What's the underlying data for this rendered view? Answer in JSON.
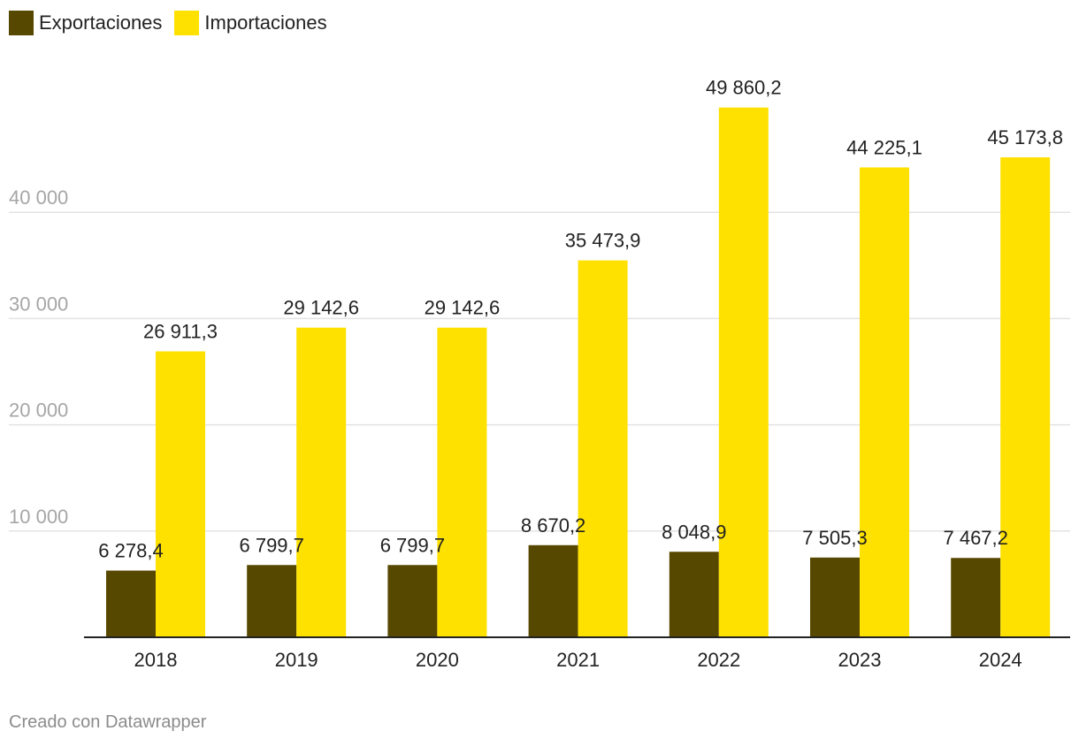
{
  "legend": {
    "items": [
      {
        "label": "Exportaciones",
        "color": "#574800"
      },
      {
        "label": "Importaciones",
        "color": "#ffe100"
      }
    ]
  },
  "footer": {
    "credit": "Creado con Datawrapper"
  },
  "chart_data": {
    "type": "bar",
    "title": "",
    "xlabel": "",
    "ylabel": "",
    "categories": [
      "2018",
      "2019",
      "2020",
      "2021",
      "2022",
      "2023",
      "2024"
    ],
    "series": [
      {
        "name": "Exportaciones",
        "color": "#574800",
        "values": [
          6278.4,
          6799.7,
          6799.7,
          8670.2,
          8048.9,
          7505.3,
          7467.2
        ],
        "labels": [
          "6 278,4",
          "6 799,7",
          "6 799,7",
          "8 670,2",
          "8 048,9",
          "7 505,3",
          "7 467,2"
        ]
      },
      {
        "name": "Importaciones",
        "color": "#ffe100",
        "values": [
          26911.3,
          29142.6,
          29142.6,
          35473.9,
          49860.2,
          44225.1,
          45173.8
        ],
        "labels": [
          "26 911,3",
          "29 142,6",
          "29 142,6",
          "35 473,9",
          "49 860,2",
          "44 225,1",
          "45 173,8"
        ]
      }
    ],
    "yticks": [
      10000,
      20000,
      30000,
      40000
    ],
    "ytick_labels": [
      "10 000",
      "20 000",
      "30 000",
      "40 000"
    ],
    "ylim": [
      0,
      50000
    ],
    "grid": true,
    "legend_position": "top-left"
  }
}
